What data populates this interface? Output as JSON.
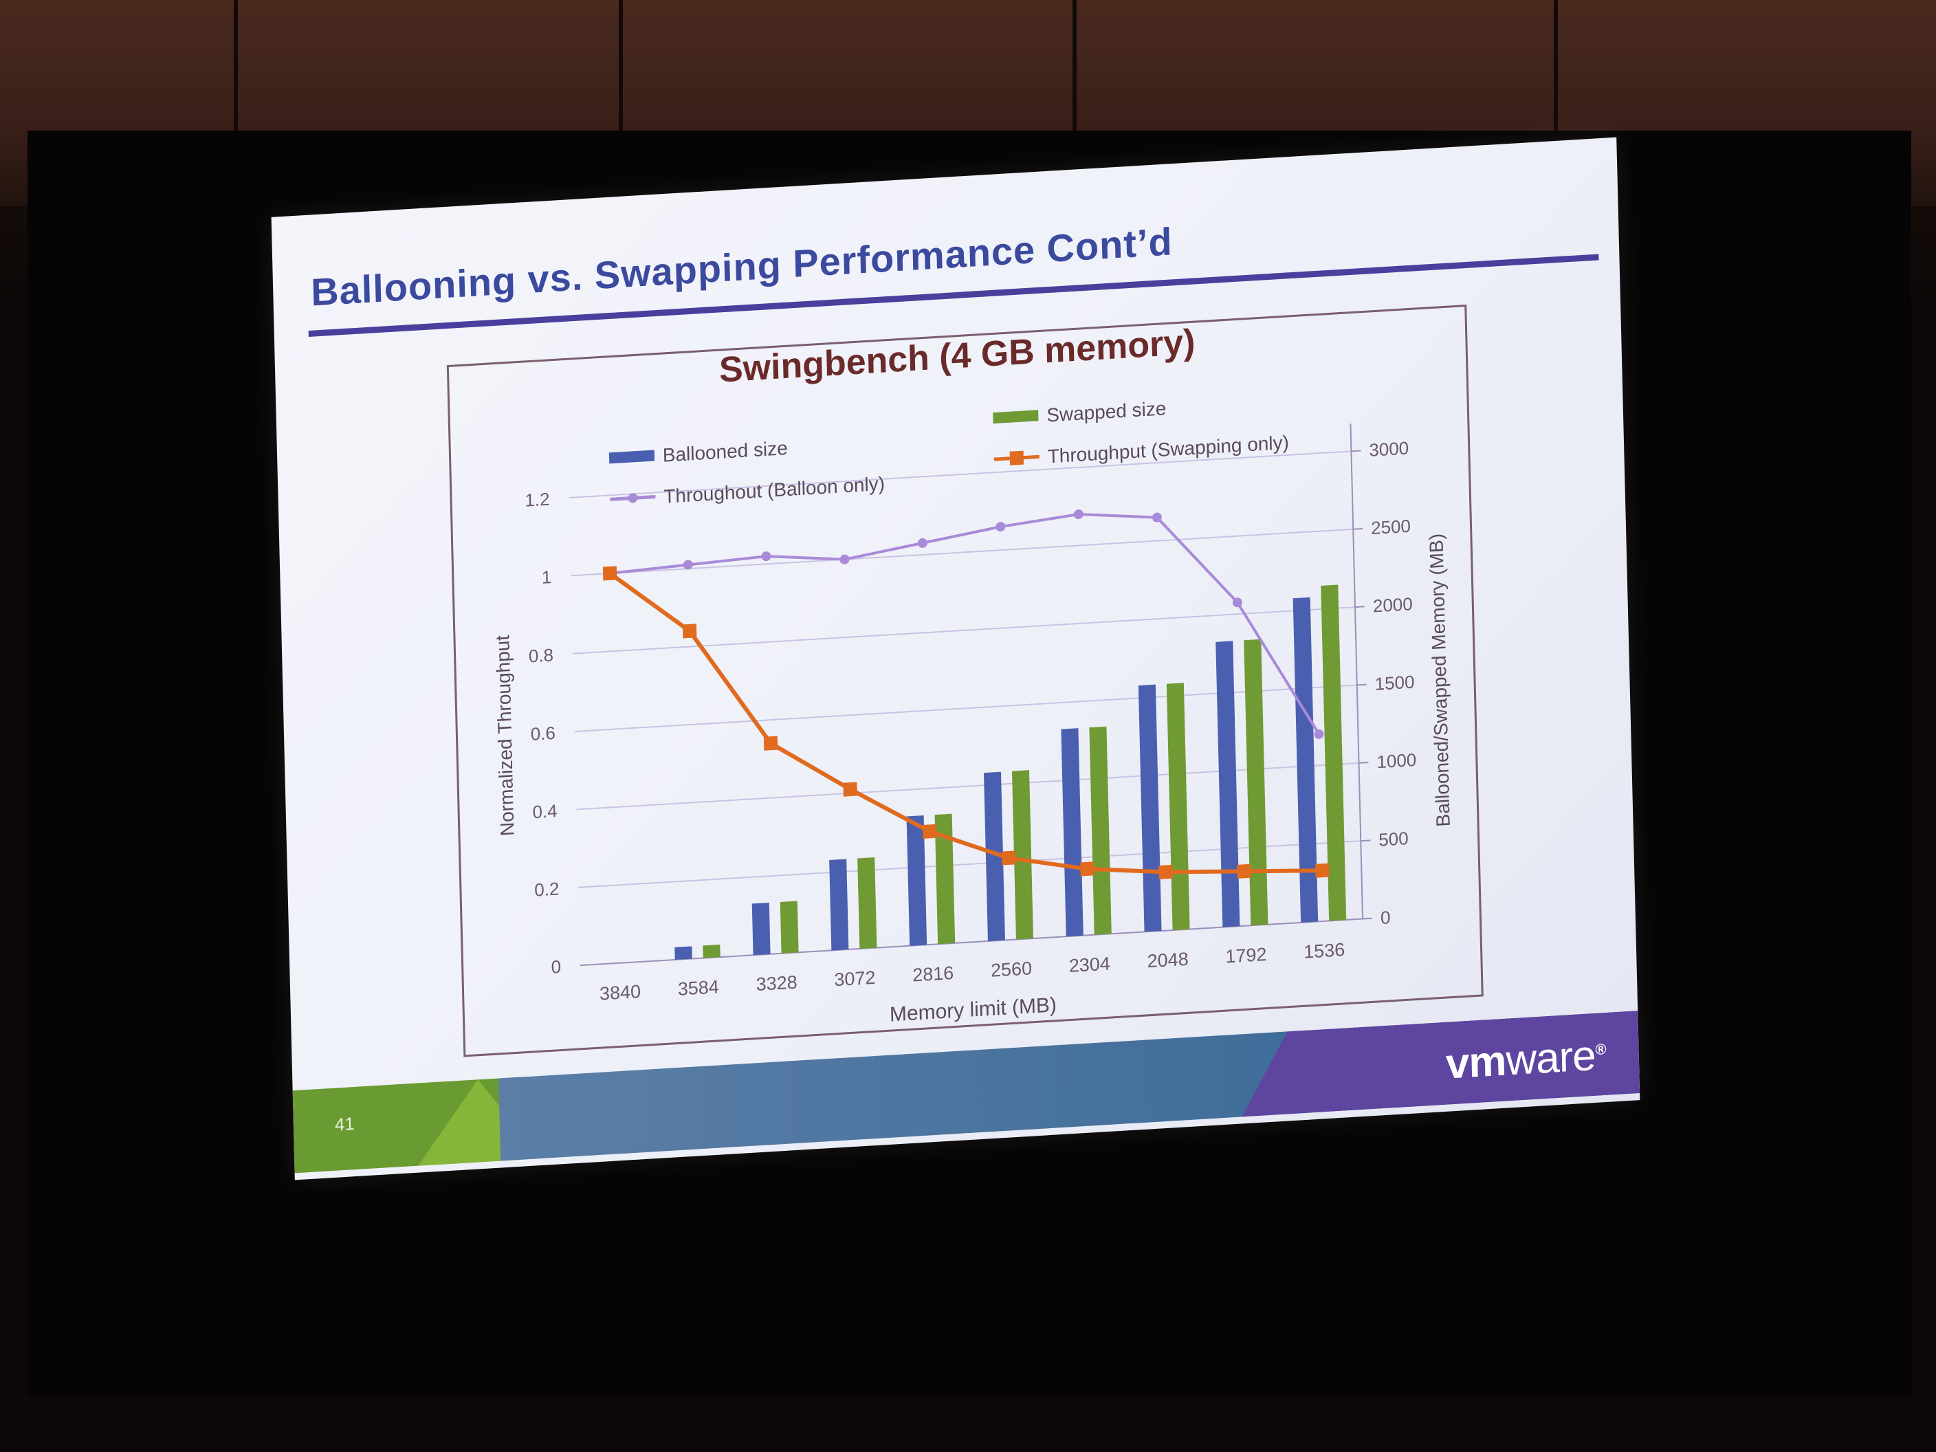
{
  "slide": {
    "title": "Ballooning vs. Swapping Performance Cont’d",
    "page_number": "41",
    "logo_bold": "vm",
    "logo_light": "ware",
    "logo_mark": "®"
  },
  "chart_data": {
    "type": "bar",
    "title": "Swingbench (4 GB memory)",
    "xlabel": "Memory limit (MB)",
    "ylabel_left": "Normalized Throughput",
    "ylabel_right": "Ballooned/Swapped Memory (MB)",
    "categories": [
      "3840",
      "3584",
      "3328",
      "3072",
      "2816",
      "2560",
      "2304",
      "2048",
      "1792",
      "1536"
    ],
    "y_left": {
      "lim": [
        0,
        1.2
      ],
      "ticks": [
        "0",
        "0.2",
        "0.4",
        "0.6",
        "0.8",
        "1",
        "1.2"
      ]
    },
    "y_right": {
      "lim": [
        0,
        3000
      ],
      "ticks": [
        "0",
        "500",
        "1000",
        "1500",
        "2000",
        "2500",
        "3000"
      ]
    },
    "grid": true,
    "legend_placement": "top",
    "series": [
      {
        "name": "Ballooned size",
        "kind": "bar",
        "axis": "right",
        "color": "#4a5fb0",
        "values": [
          0,
          80,
          330,
          580,
          830,
          1080,
          1330,
          1580,
          1830,
          2080
        ]
      },
      {
        "name": "Swapped size",
        "kind": "bar",
        "axis": "right",
        "color": "#6f9a34",
        "values": [
          0,
          80,
          330,
          580,
          830,
          1080,
          1330,
          1580,
          1830,
          2150
        ]
      },
      {
        "name": "Throughout (Balloon only)",
        "kind": "line",
        "axis": "left",
        "color": "#a98ad8",
        "values": [
          1.0,
          1.01,
          1.02,
          1.0,
          1.03,
          1.06,
          1.08,
          1.06,
          0.83,
          0.48
        ]
      },
      {
        "name": "Throughput (Swapping only)",
        "kind": "line",
        "axis": "left",
        "color": "#e06a1e",
        "values": [
          1.0,
          0.84,
          0.54,
          0.41,
          0.29,
          0.21,
          0.17,
          0.15,
          0.14,
          0.13
        ]
      }
    ]
  }
}
